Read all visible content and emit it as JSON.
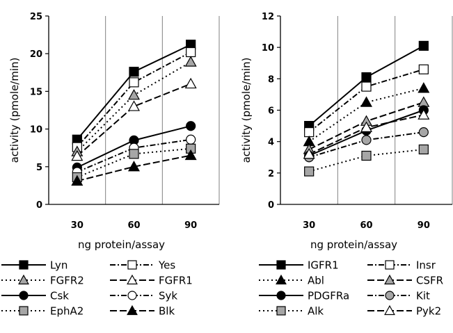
{
  "chart_data": [
    {
      "type": "line",
      "x": [
        30,
        60,
        90
      ],
      "xlabel": "ng protein/assay",
      "ylabel": "activity (pmole/min)",
      "ylim": [
        0,
        25
      ],
      "yticks": [
        0,
        5,
        10,
        15,
        20,
        25
      ],
      "grid": "vertical",
      "legend": "bottom",
      "series": [
        {
          "name": "Lyn",
          "values": [
            8.6,
            17.6,
            21.2
          ],
          "marker": "square",
          "fill": "black",
          "dash": "solid"
        },
        {
          "name": "Yes",
          "values": [
            7.6,
            16.2,
            20.2
          ],
          "marker": "square",
          "fill": "white",
          "dash": "dashdot"
        },
        {
          "name": "FGFR2",
          "values": [
            7.0,
            14.5,
            18.9
          ],
          "marker": "triangle",
          "fill": "gray",
          "dash": "dotted"
        },
        {
          "name": "FGFR1",
          "values": [
            6.4,
            13.0,
            16.0
          ],
          "marker": "triangle",
          "fill": "white",
          "dash": "longdash"
        },
        {
          "name": "Csk",
          "values": [
            4.9,
            8.5,
            10.4
          ],
          "marker": "circle",
          "fill": "black",
          "dash": "solid"
        },
        {
          "name": "Syk",
          "values": [
            4.3,
            7.5,
            8.6
          ],
          "marker": "circle",
          "fill": "white",
          "dash": "dashdot"
        },
        {
          "name": "EphA2",
          "values": [
            3.6,
            6.7,
            7.4
          ],
          "marker": "square",
          "fill": "gray",
          "dash": "dotted"
        },
        {
          "name": "Blk",
          "values": [
            3.1,
            5.0,
            6.5
          ],
          "marker": "triangle",
          "fill": "black",
          "dash": "longdash"
        }
      ]
    },
    {
      "type": "line",
      "x": [
        30,
        60,
        90
      ],
      "xlabel": "ng protein/assay",
      "ylabel": "activity (pmole/min)",
      "ylim": [
        0,
        12
      ],
      "yticks": [
        0,
        2,
        4,
        6,
        8,
        10,
        12
      ],
      "grid": "vertical",
      "legend": "bottom",
      "series": [
        {
          "name": "IGFR1",
          "values": [
            5.0,
            8.1,
            10.1
          ],
          "marker": "square",
          "fill": "black",
          "dash": "solid"
        },
        {
          "name": "Insr",
          "values": [
            4.6,
            7.5,
            8.6
          ],
          "marker": "square",
          "fill": "white",
          "dash": "dashdot"
        },
        {
          "name": "Abl",
          "values": [
            4.0,
            6.5,
            7.4
          ],
          "marker": "triangle",
          "fill": "black",
          "dash": "dotted"
        },
        {
          "name": "CSFR",
          "values": [
            3.5,
            5.3,
            6.5
          ],
          "marker": "triangle",
          "fill": "gray",
          "dash": "longdash"
        },
        {
          "name": "PDGFRa",
          "values": [
            3.1,
            4.7,
            6.0
          ],
          "marker": "circle",
          "fill": "black",
          "dash": "solid"
        },
        {
          "name": "Kit",
          "values": [
            3.0,
            4.1,
            4.6
          ],
          "marker": "circle",
          "fill": "gray",
          "dash": "dashdot"
        },
        {
          "name": "Alk",
          "values": [
            2.1,
            3.1,
            3.5
          ],
          "marker": "square",
          "fill": "gray",
          "dash": "dotted"
        },
        {
          "name": "Pyk2",
          "values": [
            3.2,
            4.9,
            5.7
          ],
          "marker": "triangle",
          "fill": "white",
          "dash": "longdash"
        }
      ]
    }
  ],
  "colors": {
    "gray_fill": "#a6a6a6",
    "line": "#000000",
    "grid": "#808080"
  }
}
